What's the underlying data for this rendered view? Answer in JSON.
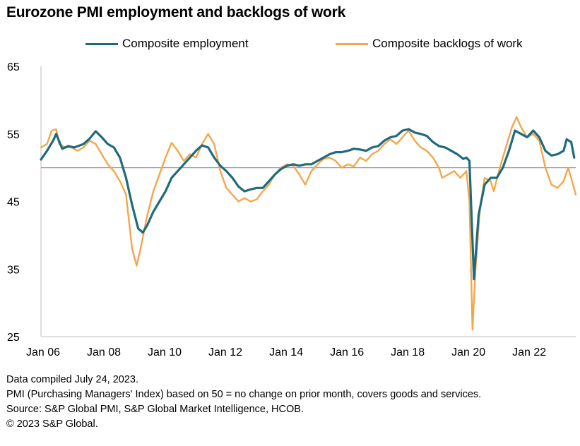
{
  "chart_data": {
    "type": "line",
    "title": "Eurozone PMI employment and backlogs of work",
    "xlabel": "",
    "ylabel": "",
    "ylim": [
      25,
      65
    ],
    "yticks": [
      25,
      35,
      45,
      55,
      65
    ],
    "reference_line": 50,
    "xlim": [
      2006.0,
      2023.6
    ],
    "xticks": [
      {
        "label": "Jan 06",
        "value": 2006
      },
      {
        "label": "Jan 08",
        "value": 2008
      },
      {
        "label": "Jan 10",
        "value": 2010
      },
      {
        "label": "Jan 12",
        "value": 2012
      },
      {
        "label": "Jan 14",
        "value": 2014
      },
      {
        "label": "Jan 16",
        "value": 2016
      },
      {
        "label": "Jan 18",
        "value": 2018
      },
      {
        "label": "Jan 20",
        "value": 2020
      },
      {
        "label": "Jan 22",
        "value": 2022
      }
    ],
    "legend_position": "top",
    "series": [
      {
        "name": "Composite employment",
        "color": "#1f6a7f",
        "points": [
          [
            2006.0,
            51.2
          ],
          [
            2006.2,
            52.5
          ],
          [
            2006.4,
            54.0
          ],
          [
            2006.5,
            55.0
          ],
          [
            2006.7,
            52.8
          ],
          [
            2006.9,
            53.2
          ],
          [
            2007.1,
            53.0
          ],
          [
            2007.4,
            53.5
          ],
          [
            2007.6,
            54.3
          ],
          [
            2007.8,
            55.4
          ],
          [
            2008.0,
            54.5
          ],
          [
            2008.2,
            53.5
          ],
          [
            2008.4,
            53.0
          ],
          [
            2008.6,
            51.5
          ],
          [
            2008.8,
            48.5
          ],
          [
            2009.0,
            44.5
          ],
          [
            2009.2,
            41.0
          ],
          [
            2009.35,
            40.4
          ],
          [
            2009.5,
            41.5
          ],
          [
            2009.7,
            43.5
          ],
          [
            2009.9,
            45.0
          ],
          [
            2010.1,
            46.5
          ],
          [
            2010.3,
            48.5
          ],
          [
            2010.5,
            49.5
          ],
          [
            2010.7,
            50.5
          ],
          [
            2010.9,
            51.5
          ],
          [
            2011.1,
            52.5
          ],
          [
            2011.3,
            53.3
          ],
          [
            2011.5,
            53.0
          ],
          [
            2011.7,
            51.5
          ],
          [
            2011.9,
            50.3
          ],
          [
            2012.1,
            49.5
          ],
          [
            2012.3,
            48.5
          ],
          [
            2012.5,
            47.2
          ],
          [
            2012.7,
            46.5
          ],
          [
            2012.9,
            46.8
          ],
          [
            2013.1,
            47.0
          ],
          [
            2013.3,
            47.0
          ],
          [
            2013.5,
            48.0
          ],
          [
            2013.7,
            49.0
          ],
          [
            2013.9,
            49.8
          ],
          [
            2014.1,
            50.3
          ],
          [
            2014.3,
            50.5
          ],
          [
            2014.5,
            50.3
          ],
          [
            2014.7,
            50.5
          ],
          [
            2014.9,
            50.5
          ],
          [
            2015.1,
            51.0
          ],
          [
            2015.3,
            51.5
          ],
          [
            2015.5,
            52.0
          ],
          [
            2015.7,
            52.3
          ],
          [
            2015.9,
            52.3
          ],
          [
            2016.1,
            52.5
          ],
          [
            2016.3,
            52.8
          ],
          [
            2016.5,
            52.7
          ],
          [
            2016.7,
            52.5
          ],
          [
            2016.9,
            53.0
          ],
          [
            2017.1,
            53.2
          ],
          [
            2017.3,
            54.0
          ],
          [
            2017.5,
            54.5
          ],
          [
            2017.7,
            54.7
          ],
          [
            2017.9,
            55.5
          ],
          [
            2018.1,
            55.7
          ],
          [
            2018.3,
            55.2
          ],
          [
            2018.5,
            55.0
          ],
          [
            2018.7,
            54.7
          ],
          [
            2018.9,
            53.8
          ],
          [
            2019.1,
            53.2
          ],
          [
            2019.3,
            53.0
          ],
          [
            2019.5,
            52.5
          ],
          [
            2019.7,
            52.0
          ],
          [
            2019.9,
            51.3
          ],
          [
            2020.0,
            51.5
          ],
          [
            2020.1,
            51.0
          ],
          [
            2020.25,
            33.5
          ],
          [
            2020.4,
            43.0
          ],
          [
            2020.6,
            47.5
          ],
          [
            2020.8,
            48.5
          ],
          [
            2021.0,
            48.5
          ],
          [
            2021.2,
            50.0
          ],
          [
            2021.4,
            52.5
          ],
          [
            2021.6,
            55.5
          ],
          [
            2021.8,
            55.0
          ],
          [
            2022.0,
            54.5
          ],
          [
            2022.2,
            55.5
          ],
          [
            2022.4,
            54.5
          ],
          [
            2022.6,
            52.5
          ],
          [
            2022.8,
            51.8
          ],
          [
            2023.0,
            52.0
          ],
          [
            2023.2,
            52.5
          ],
          [
            2023.3,
            54.2
          ],
          [
            2023.45,
            53.8
          ],
          [
            2023.55,
            51.5
          ]
        ]
      },
      {
        "name": "Composite backlogs of work",
        "color": "#f2a74b",
        "points": [
          [
            2006.0,
            53.0
          ],
          [
            2006.2,
            53.5
          ],
          [
            2006.35,
            55.5
          ],
          [
            2006.5,
            55.7
          ],
          [
            2006.6,
            53.5
          ],
          [
            2006.8,
            53.0
          ],
          [
            2007.0,
            53.0
          ],
          [
            2007.2,
            52.5
          ],
          [
            2007.4,
            53.0
          ],
          [
            2007.6,
            54.0
          ],
          [
            2007.8,
            53.5
          ],
          [
            2008.0,
            52.0
          ],
          [
            2008.2,
            50.5
          ],
          [
            2008.4,
            49.5
          ],
          [
            2008.6,
            48.0
          ],
          [
            2008.8,
            46.0
          ],
          [
            2008.9,
            42.0
          ],
          [
            2009.0,
            38.0
          ],
          [
            2009.15,
            35.5
          ],
          [
            2009.3,
            38.5
          ],
          [
            2009.5,
            43.0
          ],
          [
            2009.7,
            46.5
          ],
          [
            2009.9,
            49.0
          ],
          [
            2010.1,
            51.5
          ],
          [
            2010.3,
            53.7
          ],
          [
            2010.5,
            52.5
          ],
          [
            2010.7,
            51.0
          ],
          [
            2010.9,
            52.0
          ],
          [
            2011.1,
            51.5
          ],
          [
            2011.3,
            53.5
          ],
          [
            2011.5,
            55.0
          ],
          [
            2011.7,
            53.5
          ],
          [
            2011.9,
            49.5
          ],
          [
            2012.1,
            47.0
          ],
          [
            2012.3,
            46.0
          ],
          [
            2012.5,
            45.0
          ],
          [
            2012.7,
            45.5
          ],
          [
            2012.9,
            45.0
          ],
          [
            2013.1,
            45.3
          ],
          [
            2013.3,
            46.5
          ],
          [
            2013.5,
            47.5
          ],
          [
            2013.7,
            49.0
          ],
          [
            2013.9,
            50.0
          ],
          [
            2014.1,
            50.5
          ],
          [
            2014.3,
            50.3
          ],
          [
            2014.5,
            49.0
          ],
          [
            2014.7,
            47.5
          ],
          [
            2014.9,
            49.5
          ],
          [
            2015.1,
            50.5
          ],
          [
            2015.3,
            51.3
          ],
          [
            2015.5,
            51.5
          ],
          [
            2015.7,
            51.0
          ],
          [
            2015.9,
            50.0
          ],
          [
            2016.1,
            50.5
          ],
          [
            2016.3,
            50.2
          ],
          [
            2016.5,
            51.5
          ],
          [
            2016.7,
            51.0
          ],
          [
            2016.9,
            52.0
          ],
          [
            2017.1,
            52.5
          ],
          [
            2017.3,
            53.5
          ],
          [
            2017.5,
            54.2
          ],
          [
            2017.7,
            53.5
          ],
          [
            2017.9,
            54.5
          ],
          [
            2018.1,
            55.5
          ],
          [
            2018.3,
            54.0
          ],
          [
            2018.5,
            53.0
          ],
          [
            2018.7,
            52.5
          ],
          [
            2018.9,
            51.5
          ],
          [
            2019.1,
            50.0
          ],
          [
            2019.2,
            48.5
          ],
          [
            2019.4,
            49.0
          ],
          [
            2019.6,
            49.5
          ],
          [
            2019.8,
            48.5
          ],
          [
            2020.0,
            49.5
          ],
          [
            2020.1,
            45.0
          ],
          [
            2020.2,
            26.0
          ],
          [
            2020.3,
            35.0
          ],
          [
            2020.45,
            44.0
          ],
          [
            2020.6,
            48.5
          ],
          [
            2020.8,
            48.0
          ],
          [
            2020.9,
            46.5
          ],
          [
            2021.1,
            50.0
          ],
          [
            2021.3,
            53.0
          ],
          [
            2021.5,
            56.0
          ],
          [
            2021.65,
            57.5
          ],
          [
            2021.8,
            56.0
          ],
          [
            2022.0,
            54.5
          ],
          [
            2022.2,
            55.0
          ],
          [
            2022.4,
            54.0
          ],
          [
            2022.6,
            50.0
          ],
          [
            2022.8,
            47.5
          ],
          [
            2023.0,
            47.0
          ],
          [
            2023.2,
            48.0
          ],
          [
            2023.35,
            50.0
          ],
          [
            2023.45,
            48.5
          ],
          [
            2023.6,
            46.0
          ]
        ]
      }
    ]
  },
  "notes": {
    "line1": "Data compiled July 24, 2023.",
    "line2": "PMI (Purchasing Managers' Index) based on 50 = no change on prior month, covers goods and services.",
    "line3": "Source: S&P Global PMI, S&P Global Market Intelligence, HCOB.",
    "line4": "© 2023 S&P Global."
  }
}
